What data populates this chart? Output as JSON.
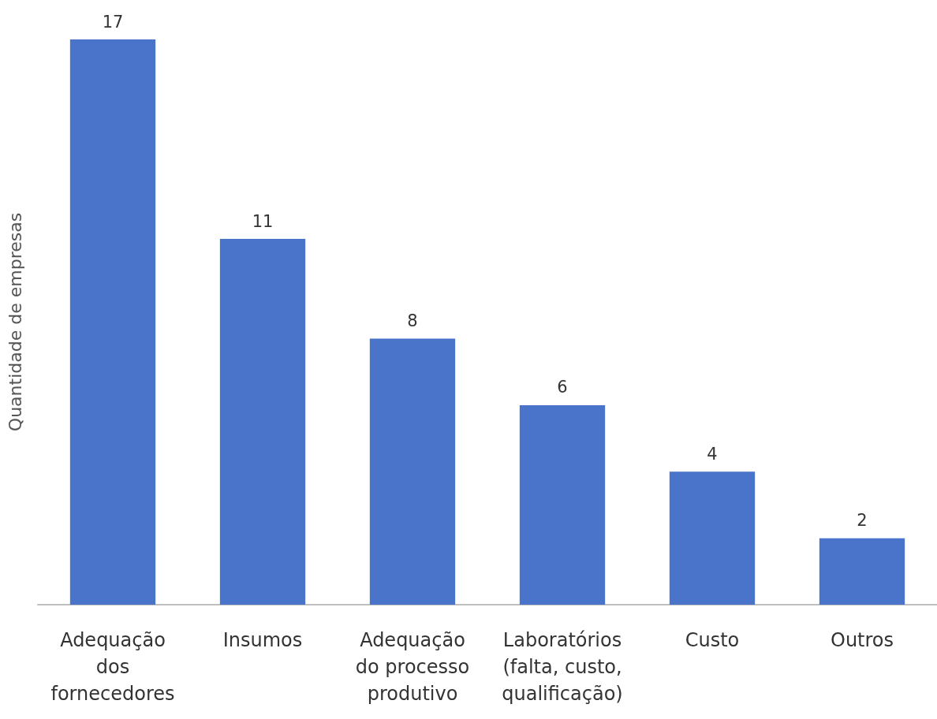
{
  "chart_data": {
    "type": "bar",
    "ylabel": "Quantidade de empresas",
    "categories": [
      "Adequação\ndos\nfornecedores",
      "Insumos",
      "Adequação\ndo processo\nprodutivo",
      "Laboratórios\n(falta, custo,\nqualificação)",
      "Custo",
      "Outros"
    ],
    "values": [
      17,
      11,
      8,
      6,
      4,
      2
    ],
    "color": "#4a74c9",
    "ylim": [
      0,
      17
    ],
    "data_labels": true,
    "grid": false
  }
}
